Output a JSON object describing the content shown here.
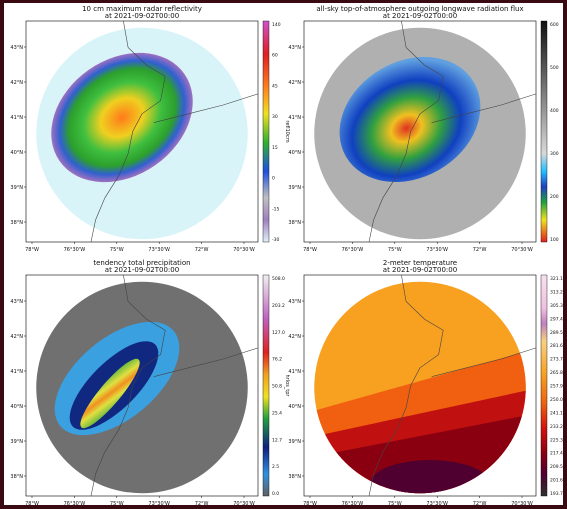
{
  "colors": {
    "border": "#3a0a12",
    "land_outline": "#444444",
    "background_gray": "#6f6f6f"
  },
  "chart_data": [
    {
      "type": "heatmap",
      "title": "10 cm maximum radar reflectivity",
      "subtitle": "at 2021-09-02T00:00",
      "xlabel": "",
      "ylabel": "",
      "x_ticks": [
        "78°W",
        "76°30'W",
        "75°W",
        "73°30'W",
        "72°W",
        "70°30'W"
      ],
      "y_ticks": [
        "43°N",
        "42°N",
        "41°N",
        "40°N",
        "39°N",
        "38°N"
      ],
      "colorbar": {
        "label": "refl10cm",
        "ticks": [
          "140",
          "60",
          "45",
          "30",
          "15",
          "0",
          "-15",
          "-30"
        ]
      }
    },
    {
      "type": "heatmap",
      "title": "all-sky top-of-atmosphere outgoing longwave radiation flux",
      "subtitle": "at 2021-09-02T00:00",
      "xlabel": "",
      "ylabel": "",
      "x_ticks": [
        "78°W",
        "76°30'W",
        "75°W",
        "73°30'W",
        "72°W",
        "70°30'W"
      ],
      "y_ticks": [
        "43°N",
        "42°N",
        "41°N",
        "40°N",
        "39°N",
        "38°N"
      ],
      "colorbar": {
        "label": "olr",
        "ticks": [
          "600",
          "500",
          "400",
          "300",
          "200",
          "100"
        ]
      }
    },
    {
      "type": "heatmap",
      "title": "tendency total precipitation",
      "subtitle": "at 2021-09-02T00:00",
      "xlabel": "",
      "ylabel": "",
      "x_ticks": [
        "78°W",
        "76°30'W",
        "75°W",
        "73°30'W",
        "72°W",
        "70°30'W"
      ],
      "y_ticks": [
        "43°N",
        "42°N",
        "41°N",
        "40°N",
        "39°N",
        "38°N"
      ],
      "colorbar": {
        "label": "hrlos_tpr",
        "ticks": [
          "508.0",
          "203.2",
          "127.0",
          "76.2",
          "50.8",
          "25.4",
          "12.7",
          "2.5",
          "0.0"
        ]
      }
    },
    {
      "type": "heatmap",
      "title": "2-meter temperature",
      "subtitle": "at 2021-09-02T00:00",
      "xlabel": "",
      "ylabel": "",
      "x_ticks": [
        "78°W",
        "76°30'W",
        "75°W",
        "73°30'W",
        "72°W",
        "70°30'W"
      ],
      "y_ticks": [
        "43°N",
        "42°N",
        "41°N",
        "40°N",
        "39°N",
        "38°N"
      ],
      "colorbar": {
        "label": "",
        "ticks": [
          "321.1",
          "313.2",
          "305.3",
          "297.4",
          "289.5",
          "281.6",
          "273.7",
          "265.8",
          "257.9",
          "250.0",
          "241.1",
          "233.2",
          "225.3",
          "217.4",
          "209.5",
          "201.6",
          "193.7"
        ]
      }
    }
  ]
}
